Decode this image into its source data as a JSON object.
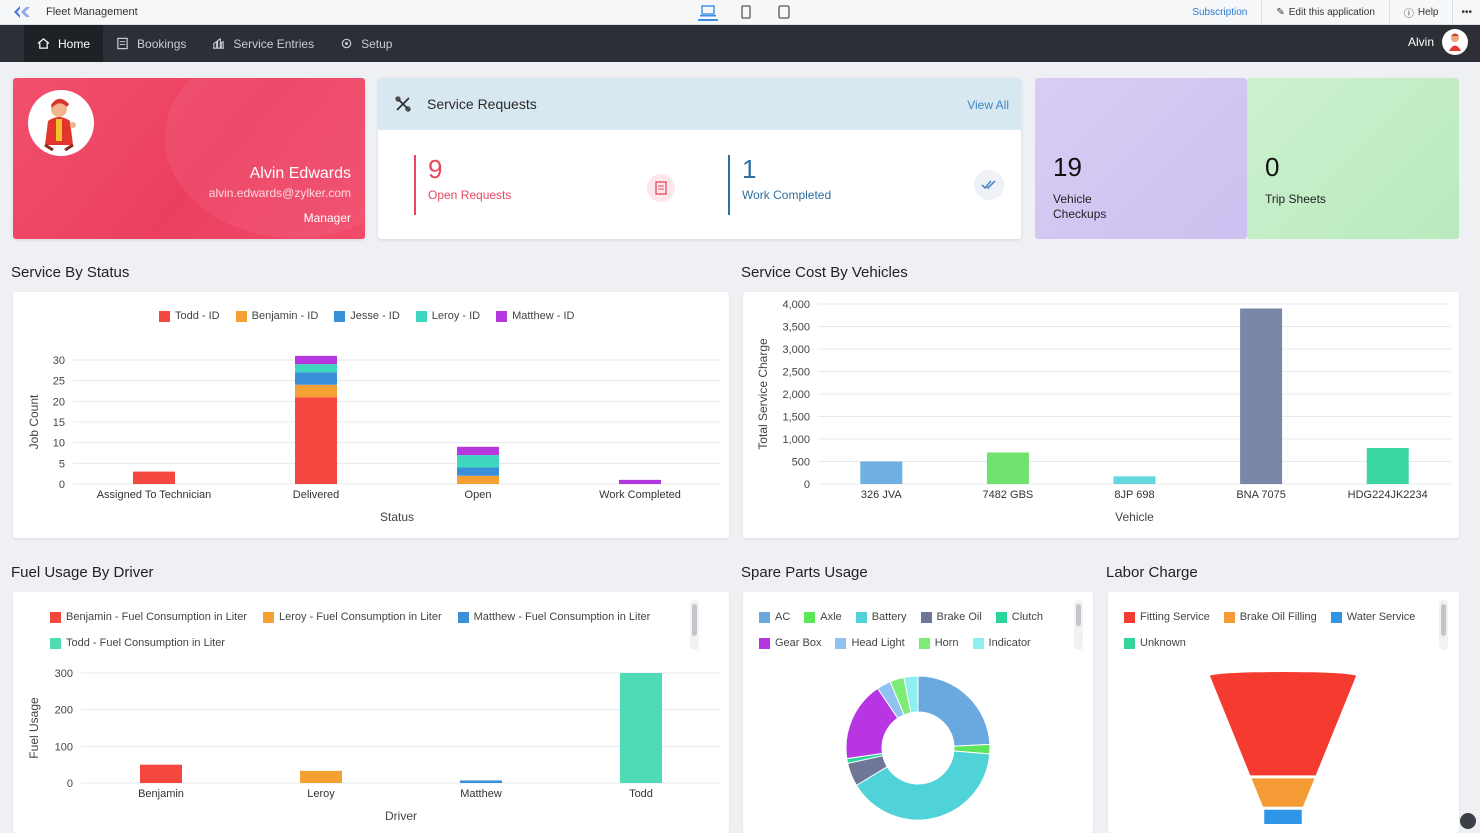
{
  "app": {
    "title": "Fleet Management"
  },
  "appbar": {
    "subscription": "Subscription",
    "edit": "Edit this application",
    "help": "Help"
  },
  "nav": {
    "items": [
      {
        "label": "Home",
        "icon": "home-icon",
        "active": true
      },
      {
        "label": "Bookings",
        "icon": "bookings-icon"
      },
      {
        "label": "Service Entries",
        "icon": "service-entries-icon"
      },
      {
        "label": "Setup",
        "icon": "gear-icon"
      }
    ],
    "user": "Alvin"
  },
  "profile": {
    "name": "Alvin Edwards",
    "email": "alvin.edwards@zylker.com",
    "role": "Manager"
  },
  "service_requests": {
    "title": "Service Requests",
    "view_all": "View All",
    "open_count": "9",
    "open_label": "Open Requests",
    "completed_count": "1",
    "completed_label": "Work Completed"
  },
  "tiles": [
    {
      "value": "19",
      "label": "Vehicle Checkups",
      "color": "#d4c8f2"
    },
    {
      "value": "0",
      "label": "Trip Sheets",
      "color": "#c3eec7"
    }
  ],
  "sections": {
    "status": "Service By Status",
    "cost": "Service Cost By Vehicles",
    "fuel": "Fuel Usage By Driver",
    "spare": "Spare Parts Usage",
    "labor": "Labor Charge"
  },
  "chart_data": [
    {
      "id": "service-by-status",
      "type": "bar",
      "stacked": true,
      "categories": [
        "Assigned To Technician",
        "Delivered",
        "Open",
        "Work Completed"
      ],
      "series": [
        {
          "name": "Todd - ID",
          "color": "#f4473f",
          "values": [
            3,
            21,
            0,
            0
          ]
        },
        {
          "name": "Benjamin - ID",
          "color": "#f5a033",
          "values": [
            0,
            3,
            2,
            0
          ]
        },
        {
          "name": "Jesse - ID",
          "color": "#3a8fd9",
          "values": [
            0,
            3,
            2,
            0
          ]
        },
        {
          "name": "Leroy - ID",
          "color": "#3fd7c0",
          "values": [
            0,
            2,
            3,
            0
          ]
        },
        {
          "name": "Matthew - ID",
          "color": "#b437e0",
          "values": [
            0,
            2,
            2,
            1
          ]
        }
      ],
      "xlabel": "Status",
      "ylabel": "Job Count",
      "ylim": [
        0,
        30
      ],
      "yticks": [
        "0",
        "5",
        "10",
        "15",
        "20",
        "25",
        "30"
      ],
      "legend": "top"
    },
    {
      "id": "service-cost-by-vehicles",
      "type": "bar",
      "categories": [
        "326 JVA",
        "7482 GBS",
        "8JP 698",
        "BNA 7075",
        "HDG224JK2234"
      ],
      "values": [
        500,
        700,
        170,
        3900,
        800
      ],
      "colors": [
        "#6fb0e3",
        "#71e26e",
        "#62d8de",
        "#7b87a8",
        "#3cd6a3"
      ],
      "xlabel": "Vehicle",
      "ylabel": "Total Service Charge",
      "ylim": [
        0,
        4000
      ],
      "yticks": [
        "0",
        "500",
        "1,000",
        "1,500",
        "2,000",
        "2,500",
        "3,000",
        "3,500",
        "4,000"
      ]
    },
    {
      "id": "fuel-usage-by-driver",
      "type": "bar",
      "categories": [
        "Benjamin",
        "Leroy",
        "Matthew",
        "Todd"
      ],
      "series": [
        {
          "name": "Benjamin - Fuel Consumption in Liter",
          "color": "#f4473f"
        },
        {
          "name": "Leroy - Fuel Consumption in Liter",
          "color": "#f5a033"
        },
        {
          "name": "Matthew - Fuel Consumption in Liter",
          "color": "#3a8fd9"
        },
        {
          "name": "Todd - Fuel Consumption in Liter",
          "color": "#4fdcb4"
        }
      ],
      "values": [
        50,
        33,
        7,
        300
      ],
      "xlabel": "Driver",
      "ylabel": "Fuel Usage",
      "ylim": [
        0,
        300
      ],
      "yticks": [
        "0",
        "100",
        "200",
        "300"
      ]
    },
    {
      "id": "spare-parts-usage",
      "type": "pie",
      "donut": true,
      "labels": [
        "AC",
        "Axle",
        "Battery",
        "Brake Oil",
        "Clutch",
        "Gear Box",
        "Head Light",
        "Horn",
        "Indicator"
      ],
      "colors": [
        "#6aa9e0",
        "#5ee65a",
        "#4fd2d8",
        "#6f7799",
        "#29d59a",
        "#b735e2",
        "#8fc2ef",
        "#7dec76",
        "#8feff0"
      ],
      "values": [
        23,
        2,
        38,
        5,
        1,
        17,
        3,
        3,
        3
      ]
    },
    {
      "id": "labor-charge",
      "type": "funnel",
      "labels": [
        "Fitting Service",
        "Brake Oil Filling",
        "Water Service",
        "Unknown"
      ],
      "colors": [
        "#f53a2f",
        "#f59b35",
        "#2f95e6",
        "#34d59b"
      ],
      "values": [
        70,
        20,
        10,
        0
      ]
    }
  ]
}
